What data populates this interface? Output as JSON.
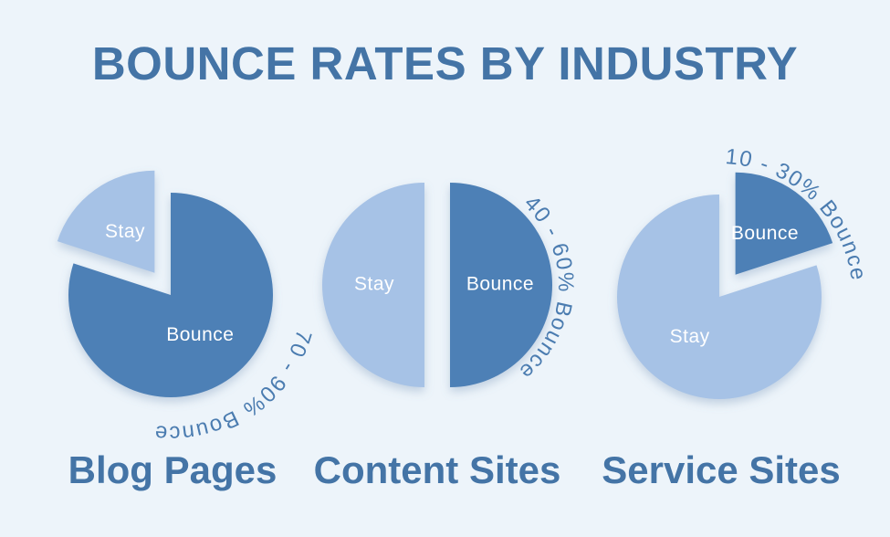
{
  "title": "BOUNCE RATES BY INDUSTRY",
  "colors": {
    "background": "#edf4fa",
    "heading": "#4474a6",
    "arc_label": "#4b7cb0",
    "slice_label": "#ffffff",
    "dark": "#4d80b6",
    "light": "#a6c2e6"
  },
  "chart_data": [
    {
      "type": "pie",
      "title": "Blog Pages",
      "annotation": "70 - 90% Bounce",
      "legend_position": "none",
      "slices": [
        {
          "label": "Stay",
          "value": 20,
          "color": "light",
          "exploded": true
        },
        {
          "label": "Bounce",
          "value": 80,
          "color": "dark",
          "exploded": false
        }
      ]
    },
    {
      "type": "pie",
      "title": "Content Sites",
      "annotation": "40 - 60% Bounce",
      "legend_position": "none",
      "slices": [
        {
          "label": "Stay",
          "value": 50,
          "color": "light",
          "exploded": true
        },
        {
          "label": "Bounce",
          "value": 50,
          "color": "dark",
          "exploded": true
        }
      ]
    },
    {
      "type": "pie",
      "title": "Service Sites",
      "annotation": "10 - 30% Bounce",
      "legend_position": "none",
      "slices": [
        {
          "label": "Stay",
          "value": 80,
          "color": "light",
          "exploded": false
        },
        {
          "label": "Bounce",
          "value": 20,
          "color": "dark",
          "exploded": true
        }
      ]
    }
  ]
}
